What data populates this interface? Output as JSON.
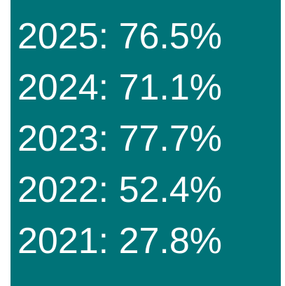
{
  "items": [
    "2025: 76.5%",
    "2024: 71.1%",
    "2023: 77.7%",
    "2022: 52.4%",
    "2021: 27.8%"
  ]
}
